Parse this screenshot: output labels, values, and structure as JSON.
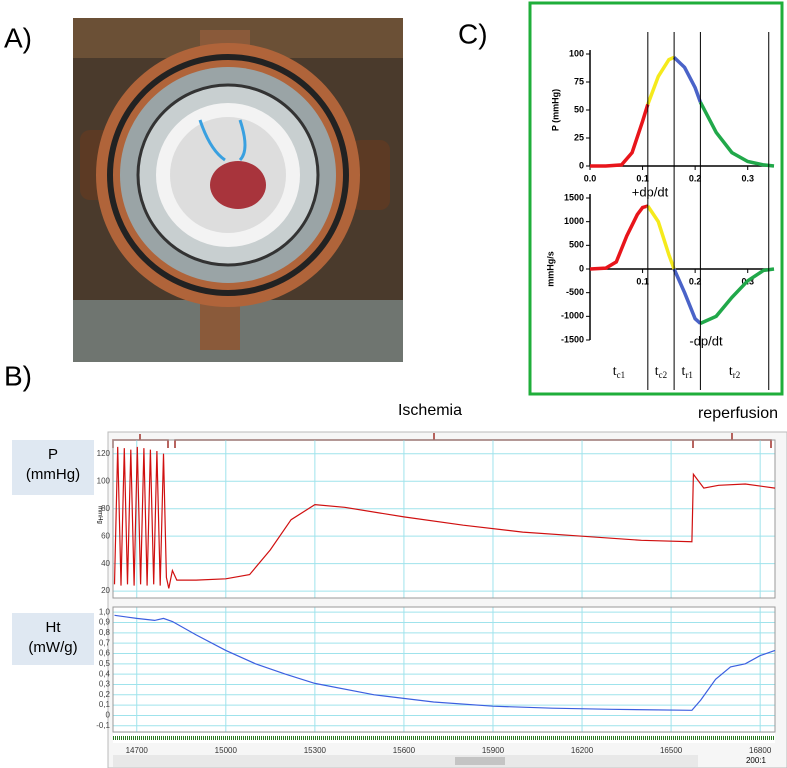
{
  "panels": {
    "a": "A)",
    "b": "B)",
    "c": "C)"
  },
  "toolbar": {
    "zoom": "200:1"
  },
  "chart_data": [
    {
      "type": "line",
      "y_label": "P (mmHg)",
      "xlim": [
        0,
        0.35
      ],
      "ylim": [
        0,
        100
      ],
      "xticks": [
        {
          "value": 0,
          "label": "0.0"
        },
        0.1,
        0.2,
        0.3
      ],
      "yticks": [
        0,
        25,
        50,
        75,
        100
      ],
      "vlines": [
        0.11,
        0.16,
        0.21,
        0.34
      ],
      "series": [
        {
          "color": "#e8151b",
          "x": [
            0,
            0.03,
            0.06,
            0.08,
            0.1,
            0.11
          ],
          "values": [
            0,
            0,
            1,
            12,
            40,
            55
          ]
        },
        {
          "color": "#f5ea1c",
          "x": [
            0.11,
            0.13,
            0.15,
            0.16
          ],
          "values": [
            55,
            80,
            95,
            97
          ]
        },
        {
          "color": "#4a63c8",
          "x": [
            0.16,
            0.18,
            0.2,
            0.21
          ],
          "values": [
            97,
            88,
            70,
            57
          ]
        },
        {
          "color": "#21a84a",
          "x": [
            0.21,
            0.24,
            0.27,
            0.3,
            0.33,
            0.35
          ],
          "values": [
            57,
            30,
            12,
            4,
            1,
            0
          ]
        }
      ]
    },
    {
      "type": "line",
      "y_label": "mmHg/s",
      "annotations": [
        "+dp/dt",
        "-dp/dt"
      ],
      "xlim": [
        0,
        0.35
      ],
      "ylim": [
        -1500,
        1500
      ],
      "xticks": [
        0.1,
        0.2,
        0.3
      ],
      "yticks": [
        -1500,
        -1000,
        -500,
        0,
        500,
        1000,
        1500
      ],
      "phases": [
        {
          "main": "t",
          "sub": "c1"
        },
        {
          "main": "t",
          "sub": "c2"
        },
        {
          "main": "t",
          "sub": "r1"
        },
        {
          "main": "t",
          "sub": "r2"
        }
      ],
      "series": [
        {
          "color": "#e8151b",
          "x": [
            0,
            0.03,
            0.05,
            0.07,
            0.09,
            0.1,
            0.11
          ],
          "values": [
            0,
            20,
            150,
            700,
            1150,
            1300,
            1330
          ]
        },
        {
          "color": "#f5ea1c",
          "x": [
            0.11,
            0.13,
            0.15,
            0.16
          ],
          "values": [
            1330,
            1000,
            300,
            0
          ]
        },
        {
          "color": "#4a63c8",
          "x": [
            0.16,
            0.18,
            0.2,
            0.21
          ],
          "values": [
            0,
            -500,
            -1050,
            -1150
          ]
        },
        {
          "color": "#21a84a",
          "x": [
            0.21,
            0.24,
            0.27,
            0.3,
            0.33,
            0.35
          ],
          "values": [
            -1150,
            -1000,
            -600,
            -250,
            -30,
            0
          ]
        }
      ]
    },
    {
      "type": "line",
      "y_label": "P",
      "y_unit": "(mmHg)",
      "axis_unit": "mmHg",
      "annotations": [
        "Ischemia",
        "reperfusion"
      ],
      "xlim": [
        14620,
        16850
      ],
      "ylim": [
        15,
        130
      ],
      "yticks": [
        20,
        40,
        60,
        80,
        100,
        120
      ],
      "series": [
        {
          "color": "#d01010",
          "x": [
            14625,
            14636,
            14647,
            14658,
            14669,
            14680,
            14691,
            14702,
            14713,
            14724,
            14735,
            14746,
            14757,
            14768,
            14779,
            14790,
            14800,
            14808,
            14820,
            14835,
            14900,
            15000,
            15080,
            15150,
            15220,
            15300,
            15400,
            15600,
            15800,
            16000,
            16200,
            16400,
            16570,
            16575,
            16610,
            16660,
            16750,
            16850
          ],
          "values": [
            25,
            125,
            24,
            124,
            25,
            123,
            24,
            125,
            25,
            124,
            24,
            123,
            25,
            122,
            24,
            120,
            30,
            22,
            35,
            28,
            28,
            29,
            32,
            50,
            72,
            83,
            81,
            74,
            68,
            63,
            60,
            57,
            56,
            105,
            95,
            97,
            98,
            95
          ]
        }
      ]
    },
    {
      "type": "line",
      "y_label": "Ht",
      "y_unit": "(mW/g)",
      "xlim": [
        14620,
        16850
      ],
      "ylim": [
        -0.16,
        1.05
      ],
      "xticks": [
        14700,
        15000,
        15300,
        15600,
        15900,
        16200,
        16500,
        16800
      ],
      "yticks": [
        {
          "value": 1,
          "label": "1,0"
        },
        {
          "value": 0.9,
          "label": "0,9"
        },
        {
          "value": 0.8,
          "label": "0,8"
        },
        {
          "value": 0.7,
          "label": "0,7"
        },
        {
          "value": 0.6,
          "label": "0,6"
        },
        {
          "value": 0.5,
          "label": "0,5"
        },
        {
          "value": 0.4,
          "label": "0,4"
        },
        {
          "value": 0.3,
          "label": "0,3"
        },
        {
          "value": 0.2,
          "label": "0,2"
        },
        {
          "value": 0.1,
          "label": "0,1"
        },
        0,
        {
          "value": -0.1,
          "label": "-0,1"
        }
      ],
      "series": [
        {
          "color": "#3c5fe0",
          "x": [
            14625,
            14700,
            14760,
            14790,
            14820,
            14900,
            15000,
            15100,
            15200,
            15300,
            15500,
            15700,
            15900,
            16100,
            16300,
            16570,
            16600,
            16650,
            16700,
            16750,
            16800,
            16850
          ],
          "values": [
            0.97,
            0.94,
            0.92,
            0.94,
            0.91,
            0.78,
            0.63,
            0.5,
            0.4,
            0.31,
            0.2,
            0.13,
            0.09,
            0.07,
            0.06,
            0.05,
            0.15,
            0.35,
            0.47,
            0.5,
            0.58,
            0.63
          ]
        }
      ]
    }
  ]
}
